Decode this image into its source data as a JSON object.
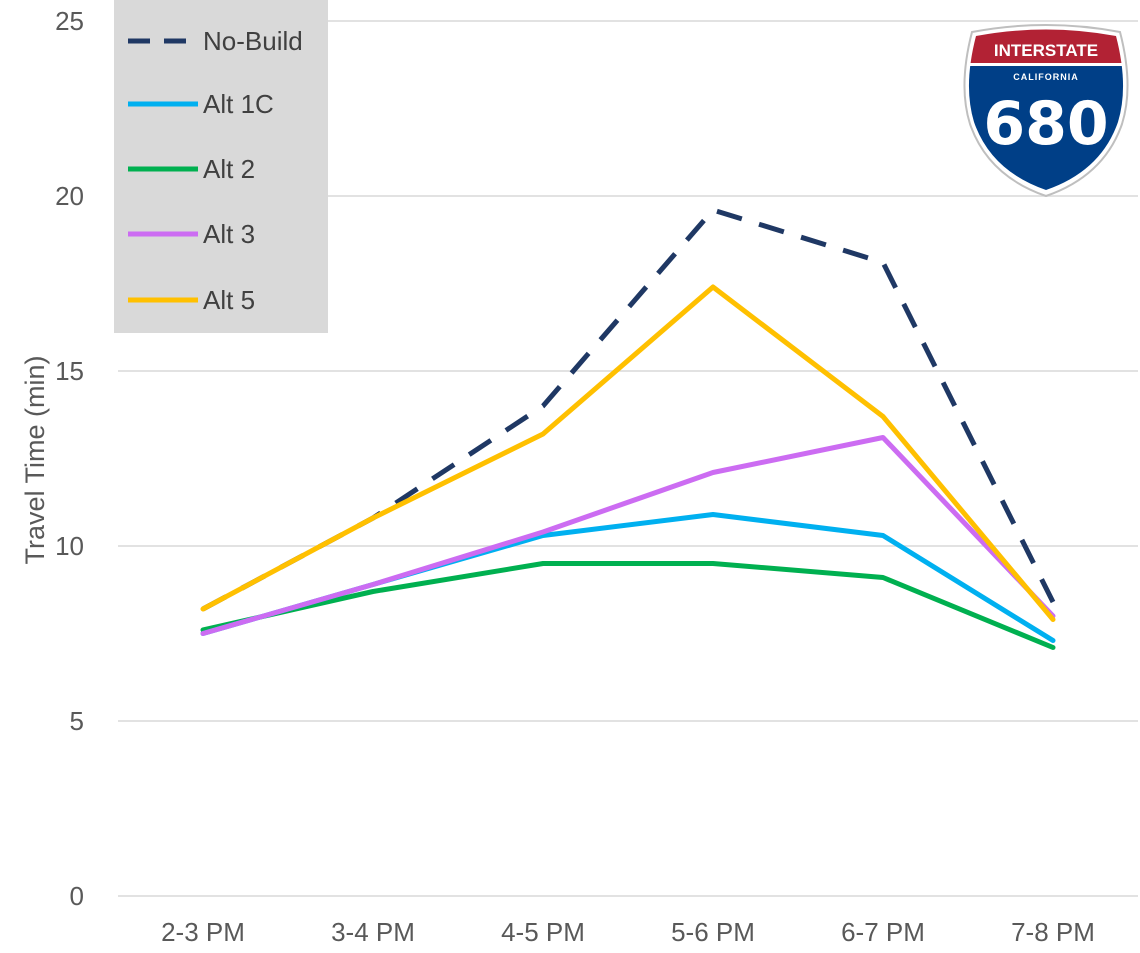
{
  "chart_data": {
    "type": "line",
    "title": "",
    "xlabel": "",
    "ylabel": "Travel Time (min)",
    "ylim": [
      0,
      25
    ],
    "yticks": [
      "0",
      "5",
      "10",
      "15",
      "20",
      "25"
    ],
    "categories": [
      "2-3 PM",
      "3-4 PM",
      "4-5 PM",
      "5-6 PM",
      "6-7 PM",
      "7-8 PM"
    ],
    "grid": "horizontal",
    "legend_position": "top-left",
    "series": [
      {
        "name": "No-Build",
        "values": [
          8.2,
          10.8,
          14.0,
          19.6,
          18.1,
          8.4
        ],
        "color": "#1f3864",
        "dashed": true
      },
      {
        "name": "Alt 1C",
        "values": [
          7.5,
          8.9,
          10.3,
          10.9,
          10.3,
          7.3
        ],
        "color": "#00b0f0",
        "dashed": false
      },
      {
        "name": "Alt 2",
        "values": [
          7.6,
          8.7,
          9.5,
          9.5,
          9.1,
          7.1
        ],
        "color": "#00b050",
        "dashed": false
      },
      {
        "name": "Alt 3",
        "values": [
          7.5,
          8.9,
          10.4,
          12.1,
          13.1,
          8.0
        ],
        "color": "#cc6cf2",
        "dashed": false
      },
      {
        "name": "Alt 5",
        "values": [
          8.2,
          10.8,
          13.2,
          17.4,
          13.7,
          7.9
        ],
        "color": "#ffc000",
        "dashed": false
      }
    ]
  },
  "shield": {
    "top_text": "INTERSTATE",
    "middle_text": "CALIFORNIA",
    "number": "680",
    "top_color": "#b22234",
    "bottom_color": "#003f87"
  }
}
